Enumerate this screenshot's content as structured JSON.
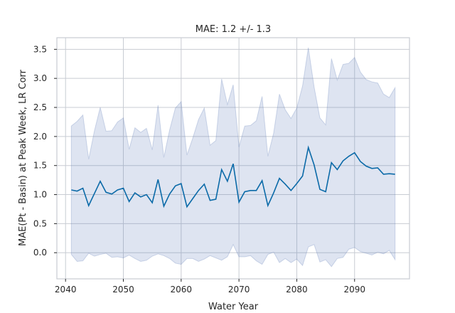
{
  "chart_data": {
    "type": "line",
    "title": "MAE: 1.2 +/- 1.3",
    "xlabel": "Water Year",
    "ylabel": "MAE(Pt - Basin) at Peak Week, LR Corr",
    "xlim": [
      2038.5,
      2099.5
    ],
    "ylim": [
      -0.45,
      3.7
    ],
    "xticks": [
      2040,
      2050,
      2060,
      2070,
      2080,
      2090
    ],
    "yticks": [
      0.0,
      0.5,
      1.0,
      1.5,
      2.0,
      2.5,
      3.0,
      3.5
    ],
    "xtick_labels": [
      "2040",
      "2050",
      "2060",
      "2070",
      "2080",
      "2090"
    ],
    "ytick_labels": [
      "0.0",
      "0.5",
      "1.0",
      "1.5",
      "2.0",
      "2.5",
      "3.0",
      "3.5"
    ],
    "grid": true,
    "series": [
      {
        "color": "#0b6aa8",
        "x": [
          2041,
          2042,
          2043,
          2044,
          2045,
          2046,
          2047,
          2048,
          2049,
          2050,
          2051,
          2052,
          2053,
          2054,
          2055,
          2056,
          2057,
          2058,
          2059,
          2060,
          2061,
          2062,
          2063,
          2064,
          2065,
          2066,
          2067,
          2068,
          2069,
          2070,
          2071,
          2072,
          2073,
          2074,
          2075,
          2076,
          2077,
          2078,
          2079,
          2080,
          2081,
          2082,
          2083,
          2084,
          2085,
          2086,
          2087,
          2088,
          2089,
          2090,
          2091,
          2092,
          2093,
          2094,
          2095,
          2096,
          2097
        ],
        "values": [
          1.08,
          1.06,
          1.11,
          0.81,
          1.02,
          1.23,
          1.04,
          1.01,
          1.08,
          1.11,
          0.88,
          1.03,
          0.96,
          1.0,
          0.86,
          1.26,
          0.8,
          1.01,
          1.15,
          1.19,
          0.79,
          0.93,
          1.07,
          1.18,
          0.9,
          0.92,
          1.43,
          1.23,
          1.53,
          0.87,
          1.05,
          1.07,
          1.07,
          1.24,
          0.81,
          1.03,
          1.28,
          1.18,
          1.07,
          1.19,
          1.32,
          1.81,
          1.51,
          1.09,
          1.05,
          1.55,
          1.43,
          1.58,
          1.66,
          1.72,
          1.57,
          1.49,
          1.45,
          1.46,
          1.35,
          1.36,
          1.35
        ],
        "lower": [
          -0.03,
          -0.15,
          -0.14,
          -0.01,
          -0.06,
          -0.03,
          -0.01,
          -0.08,
          -0.07,
          -0.09,
          -0.04,
          -0.1,
          -0.15,
          -0.13,
          -0.06,
          -0.02,
          -0.05,
          -0.1,
          -0.18,
          -0.2,
          -0.1,
          -0.1,
          -0.15,
          -0.11,
          -0.05,
          -0.09,
          -0.13,
          -0.07,
          0.14,
          -0.07,
          -0.07,
          -0.05,
          -0.14,
          -0.2,
          -0.03,
          0.01,
          -0.17,
          -0.1,
          -0.17,
          -0.11,
          -0.22,
          0.1,
          0.14,
          -0.16,
          -0.12,
          -0.24,
          -0.1,
          -0.08,
          0.06,
          0.09,
          0.02,
          -0.01,
          -0.04,
          0.01,
          -0.02,
          0.04,
          -0.12
        ],
        "upper": [
          2.18,
          2.26,
          2.37,
          1.61,
          2.1,
          2.5,
          2.09,
          2.1,
          2.25,
          2.32,
          1.78,
          2.15,
          2.07,
          2.14,
          1.77,
          2.54,
          1.64,
          2.11,
          2.49,
          2.6,
          1.68,
          1.97,
          2.29,
          2.49,
          1.85,
          1.93,
          2.99,
          2.55,
          2.89,
          1.82,
          2.18,
          2.19,
          2.27,
          2.69,
          1.66,
          2.06,
          2.73,
          2.46,
          2.31,
          2.49,
          2.87,
          3.53,
          2.85,
          2.32,
          2.2,
          3.34,
          2.97,
          3.24,
          3.26,
          3.36,
          3.11,
          2.98,
          2.94,
          2.92,
          2.73,
          2.67,
          2.84
        ]
      }
    ]
  }
}
